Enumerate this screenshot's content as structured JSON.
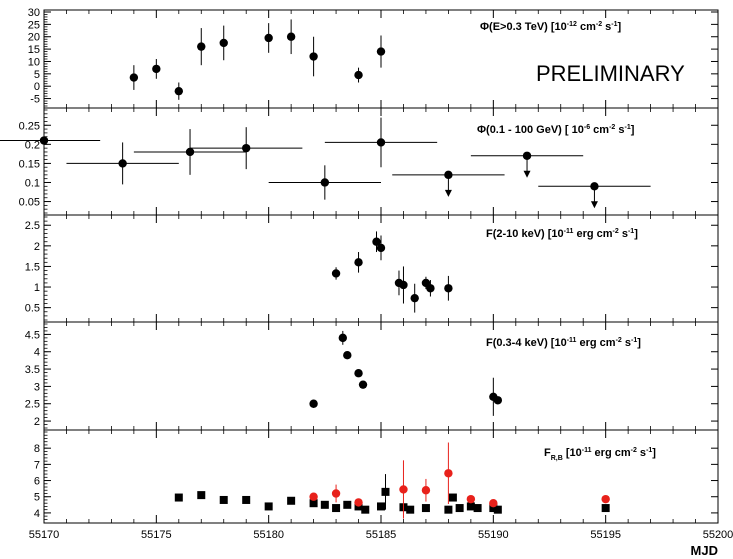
{
  "chart_data": {
    "type": "scatter",
    "xlabel": "MJD",
    "xlim": [
      55170,
      55200
    ],
    "x_ticks": [
      "55170",
      "55175",
      "55180",
      "55185",
      "55190",
      "55195",
      "55200"
    ],
    "annotation": "PRELIMINARY",
    "panels": [
      {
        "label_parts": [
          "Φ(E>0.3 TeV) [10",
          "-12",
          " cm",
          "-2",
          " s",
          "-1",
          "]"
        ],
        "ylim": [
          -8,
          30
        ],
        "y_ticks": [
          -5,
          0,
          5,
          10,
          15,
          20,
          25,
          30
        ],
        "y_tick_labels": [
          "-5",
          "0",
          "5",
          "10",
          "15",
          "20",
          "25",
          "30"
        ],
        "series": [
          {
            "marker": "circle",
            "color": "#000000",
            "points": [
              {
                "x": 55174.0,
                "y": 3.5,
                "yerr": 5
              },
              {
                "x": 55175.0,
                "y": 7.0,
                "yerr": 4
              },
              {
                "x": 55176.0,
                "y": -2.0,
                "yerr": 3.5
              },
              {
                "x": 55177.0,
                "y": 16.0,
                "yerr": 7.5
              },
              {
                "x": 55178.0,
                "y": 17.5,
                "yerr": 7
              },
              {
                "x": 55180.0,
                "y": 19.5,
                "yerr": 6
              },
              {
                "x": 55181.0,
                "y": 20.0,
                "yerr": 7
              },
              {
                "x": 55182.0,
                "y": 12.0,
                "yerr": 8
              },
              {
                "x": 55184.0,
                "y": 4.5,
                "yerr": 3
              },
              {
                "x": 55185.0,
                "y": 14.0,
                "yerr": 6.5
              }
            ]
          }
        ]
      },
      {
        "label_parts": [
          "Φ(0.1 - 100 GeV) [ 10",
          "-6",
          " cm",
          "-2",
          " s",
          "-1",
          "]"
        ],
        "ylim": [
          0.02,
          0.29
        ],
        "y_ticks": [
          0.05,
          0.1,
          0.15,
          0.2,
          0.25
        ],
        "y_tick_labels": [
          "0.05",
          "0.1",
          "0.15",
          "0.2",
          "0.25"
        ],
        "series": [
          {
            "marker": "circle",
            "color": "#000000",
            "points": [
              {
                "x": 55170.0,
                "y": 0.21,
                "yerr": 0.055,
                "xerr": 2.5
              },
              {
                "x": 55173.5,
                "y": 0.15,
                "yerr": 0.055,
                "xerr": 2.5
              },
              {
                "x": 55176.5,
                "y": 0.18,
                "yerr": 0.06,
                "xerr": 2.5
              },
              {
                "x": 55179.0,
                "y": 0.19,
                "yerr": 0.055,
                "xerr": 2.5
              },
              {
                "x": 55182.5,
                "y": 0.1,
                "yerr": 0.045,
                "xerr": 2.5
              },
              {
                "x": 55185.0,
                "y": 0.205,
                "yerr": 0.065,
                "xerr": 2.5
              },
              {
                "x": 55188.0,
                "y": 0.12,
                "xerr": 2.5,
                "upper_limit": true
              },
              {
                "x": 55191.5,
                "y": 0.17,
                "xerr": 2.5,
                "upper_limit": true
              },
              {
                "x": 55194.5,
                "y": 0.09,
                "xerr": 2.5,
                "upper_limit": true
              }
            ]
          }
        ]
      },
      {
        "label_parts": [
          "F(2-10 keV) [10",
          "-11",
          " erg cm",
          "-2",
          " s",
          "-1",
          "]"
        ],
        "ylim": [
          0.2,
          2.7
        ],
        "y_ticks": [
          0.5,
          1,
          1.5,
          2,
          2.5
        ],
        "y_tick_labels": [
          "0.5",
          "1",
          "1.5",
          "2",
          "2.5"
        ],
        "series": [
          {
            "marker": "circle",
            "color": "#000000",
            "points": [
              {
                "x": 55183.0,
                "y": 1.33,
                "yerr": 0.15
              },
              {
                "x": 55184.0,
                "y": 1.6,
                "yerr": 0.25
              },
              {
                "x": 55184.8,
                "y": 2.1,
                "yerr": 0.25
              },
              {
                "x": 55185.0,
                "y": 1.95,
                "yerr": 0.3
              },
              {
                "x": 55185.8,
                "y": 1.1,
                "yerr": 0.3
              },
              {
                "x": 55186.0,
                "y": 1.05,
                "yerr": 0.45
              },
              {
                "x": 55186.5,
                "y": 0.73,
                "yerr": 0.35
              },
              {
                "x": 55187.0,
                "y": 1.1,
                "yerr": 0.15
              },
              {
                "x": 55187.2,
                "y": 0.97,
                "yerr": 0.2
              },
              {
                "x": 55188.0,
                "y": 0.97,
                "yerr": 0.3
              }
            ]
          }
        ]
      },
      {
        "label_parts": [
          "F(0.3-4 keV) [10",
          "-11",
          " erg cm",
          "-2",
          " s",
          "-1",
          "]"
        ],
        "ylim": [
          1.8,
          4.8
        ],
        "y_ticks": [
          2,
          2.5,
          3,
          3.5,
          4,
          4.5
        ],
        "y_tick_labels": [
          "2",
          "2.5",
          "3",
          "3.5",
          "4",
          "4.5"
        ],
        "series": [
          {
            "marker": "circle",
            "color": "#000000",
            "points": [
              {
                "x": 55182.0,
                "y": 2.5,
                "yerr": 0.12
              },
              {
                "x": 55183.3,
                "y": 4.4,
                "yerr": 0.2
              },
              {
                "x": 55183.5,
                "y": 3.9,
                "yerr": 0.1
              },
              {
                "x": 55184.0,
                "y": 3.38,
                "yerr": 0.1
              },
              {
                "x": 55184.2,
                "y": 3.05,
                "yerr": 0.08
              },
              {
                "x": 55190.0,
                "y": 2.7,
                "yerr": 0.55
              },
              {
                "x": 55190.2,
                "y": 2.6,
                "yerr": 0.1
              }
            ]
          }
        ]
      },
      {
        "label_parts": [
          "F",
          "R,B",
          " [10",
          "-11",
          " erg cm",
          "-2",
          " s",
          "-1",
          "]"
        ],
        "label_sub_index": 1,
        "ylim": [
          3.5,
          9.0
        ],
        "y_ticks": [
          4,
          5,
          6,
          7,
          8
        ],
        "y_tick_labels": [
          "4",
          "5",
          "6",
          "7",
          "8"
        ],
        "series": [
          {
            "name": "",
            "marker": "square",
            "color": "#000000",
            "points": [
              {
                "x": 55176.0,
                "y": 4.95
              },
              {
                "x": 55177.0,
                "y": 5.1
              },
              {
                "x": 55178.0,
                "y": 4.8
              },
              {
                "x": 55179.0,
                "y": 4.8
              },
              {
                "x": 55180.0,
                "y": 4.4
              },
              {
                "x": 55181.0,
                "y": 4.75
              },
              {
                "x": 55182.0,
                "y": 4.6
              },
              {
                "x": 55182.5,
                "y": 4.5
              },
              {
                "x": 55183.0,
                "y": 4.3
              },
              {
                "x": 55183.5,
                "y": 4.5
              },
              {
                "x": 55184.0,
                "y": 4.4
              },
              {
                "x": 55184.3,
                "y": 4.2
              },
              {
                "x": 55185.0,
                "y": 4.4
              },
              {
                "x": 55185.2,
                "y": 5.3,
                "yerr": 1.1
              },
              {
                "x": 55186.0,
                "y": 4.35
              },
              {
                "x": 55186.3,
                "y": 4.2
              },
              {
                "x": 55187.0,
                "y": 4.3
              },
              {
                "x": 55188.0,
                "y": 4.2
              },
              {
                "x": 55188.2,
                "y": 4.95
              },
              {
                "x": 55188.5,
                "y": 4.3
              },
              {
                "x": 55189.0,
                "y": 4.4
              },
              {
                "x": 55189.3,
                "y": 4.3
              },
              {
                "x": 55190.0,
                "y": 4.3
              },
              {
                "x": 55190.2,
                "y": 4.2
              },
              {
                "x": 55195.0,
                "y": 4.3
              }
            ]
          },
          {
            "name": "",
            "marker": "circle",
            "color": "#e8211b",
            "points": [
              {
                "x": 55182.0,
                "y": 5.0
              },
              {
                "x": 55183.0,
                "y": 5.2,
                "yerr": 0.55
              },
              {
                "x": 55184.0,
                "y": 4.65
              },
              {
                "x": 55186.0,
                "y": 5.45,
                "yerr": 1.8
              },
              {
                "x": 55187.0,
                "y": 5.4,
                "yerr": 0.7
              },
              {
                "x": 55188.0,
                "y": 6.45,
                "yerr": 1.9
              },
              {
                "x": 55189.0,
                "y": 4.85
              },
              {
                "x": 55190.0,
                "y": 4.6
              },
              {
                "x": 55195.0,
                "y": 4.85
              }
            ]
          }
        ]
      }
    ]
  }
}
